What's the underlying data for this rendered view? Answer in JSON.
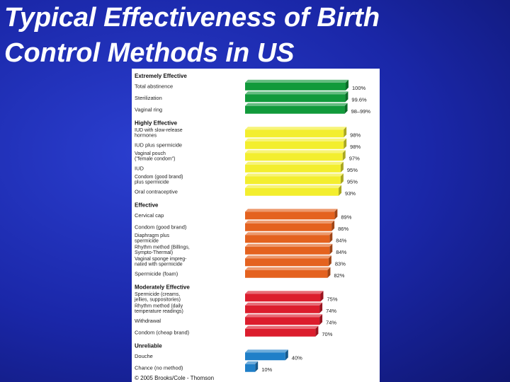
{
  "slide": {
    "title_line1": "Typical Effectiveness of Birth",
    "title_line2": "Control Methods in US"
  },
  "chart_data": {
    "type": "bar",
    "orientation": "horizontal",
    "xlim": [
      0,
      100
    ],
    "bar_style": "3d",
    "grid": false,
    "credit": "© 2005 Brooks/Cole - Thomson",
    "groups": [
      {
        "name": "Extremely Effective",
        "color": "#119a3b",
        "items": [
          {
            "label": [
              "Total abstinence"
            ],
            "value": 100,
            "value_label": "100%"
          },
          {
            "label": [
              "Sterilization"
            ],
            "value": 99.6,
            "value_label": "99.6%"
          },
          {
            "label": [
              "Vaginal ring"
            ],
            "value": 99,
            "value_label": "98–99%"
          }
        ]
      },
      {
        "name": "Highly Effective",
        "color": "#f3ee2e",
        "items": [
          {
            "label": [
              "IUD with slow-release",
              "hormones"
            ],
            "value": 98,
            "value_label": "98%"
          },
          {
            "label": [
              "IUD plus spermicide"
            ],
            "value": 98,
            "value_label": "98%"
          },
          {
            "label": [
              "Vaginal pouch",
              "(\"female condom\")"
            ],
            "value": 97,
            "value_label": "97%"
          },
          {
            "label": [
              "IUD"
            ],
            "value": 95,
            "value_label": "95%"
          },
          {
            "label": [
              "Condom (good brand)",
              "plus spermicide"
            ],
            "value": 95,
            "value_label": "95%"
          },
          {
            "label": [
              "Oral contraceptive"
            ],
            "value": 93,
            "value_label": "93%"
          }
        ]
      },
      {
        "name": "Effective",
        "color": "#e4621f",
        "items": [
          {
            "label": [
              "Cervical cap"
            ],
            "value": 89,
            "value_label": "89%"
          },
          {
            "label": [
              "Condom (good brand)"
            ],
            "value": 86,
            "value_label": "86%"
          },
          {
            "label": [
              "Diaphragm plus",
              "spermicide"
            ],
            "value": 84,
            "value_label": "84%"
          },
          {
            "label": [
              "Rhythm method (Billings,",
              "Sympto-Thermal)"
            ],
            "value": 84,
            "value_label": "84%"
          },
          {
            "label": [
              "Vaginal sponge impreg-",
              "nated with spermicide"
            ],
            "value": 83,
            "value_label": "83%"
          },
          {
            "label": [
              "Spermicide (foam)"
            ],
            "value": 82,
            "value_label": "82%"
          }
        ]
      },
      {
        "name": "Moderately Effective",
        "color": "#dc1d2d",
        "items": [
          {
            "label": [
              "Spermicide (creams,",
              "jellies, suppositories)"
            ],
            "value": 75,
            "value_label": "75%"
          },
          {
            "label": [
              "Rhythm method (daily",
              "temperature readings)"
            ],
            "value": 74,
            "value_label": "74%"
          },
          {
            "label": [
              "Withdrawal"
            ],
            "value": 74,
            "value_label": "74%"
          },
          {
            "label": [
              "Condom (cheap brand)"
            ],
            "value": 70,
            "value_label": "70%"
          }
        ]
      },
      {
        "name": "Unreliable",
        "color": "#1f7fc8",
        "items": [
          {
            "label": [
              "Douche"
            ],
            "value": 40,
            "value_label": "40%"
          },
          {
            "label": [
              "Chance (no method)"
            ],
            "value": 10,
            "value_label": "10%"
          }
        ]
      }
    ]
  }
}
